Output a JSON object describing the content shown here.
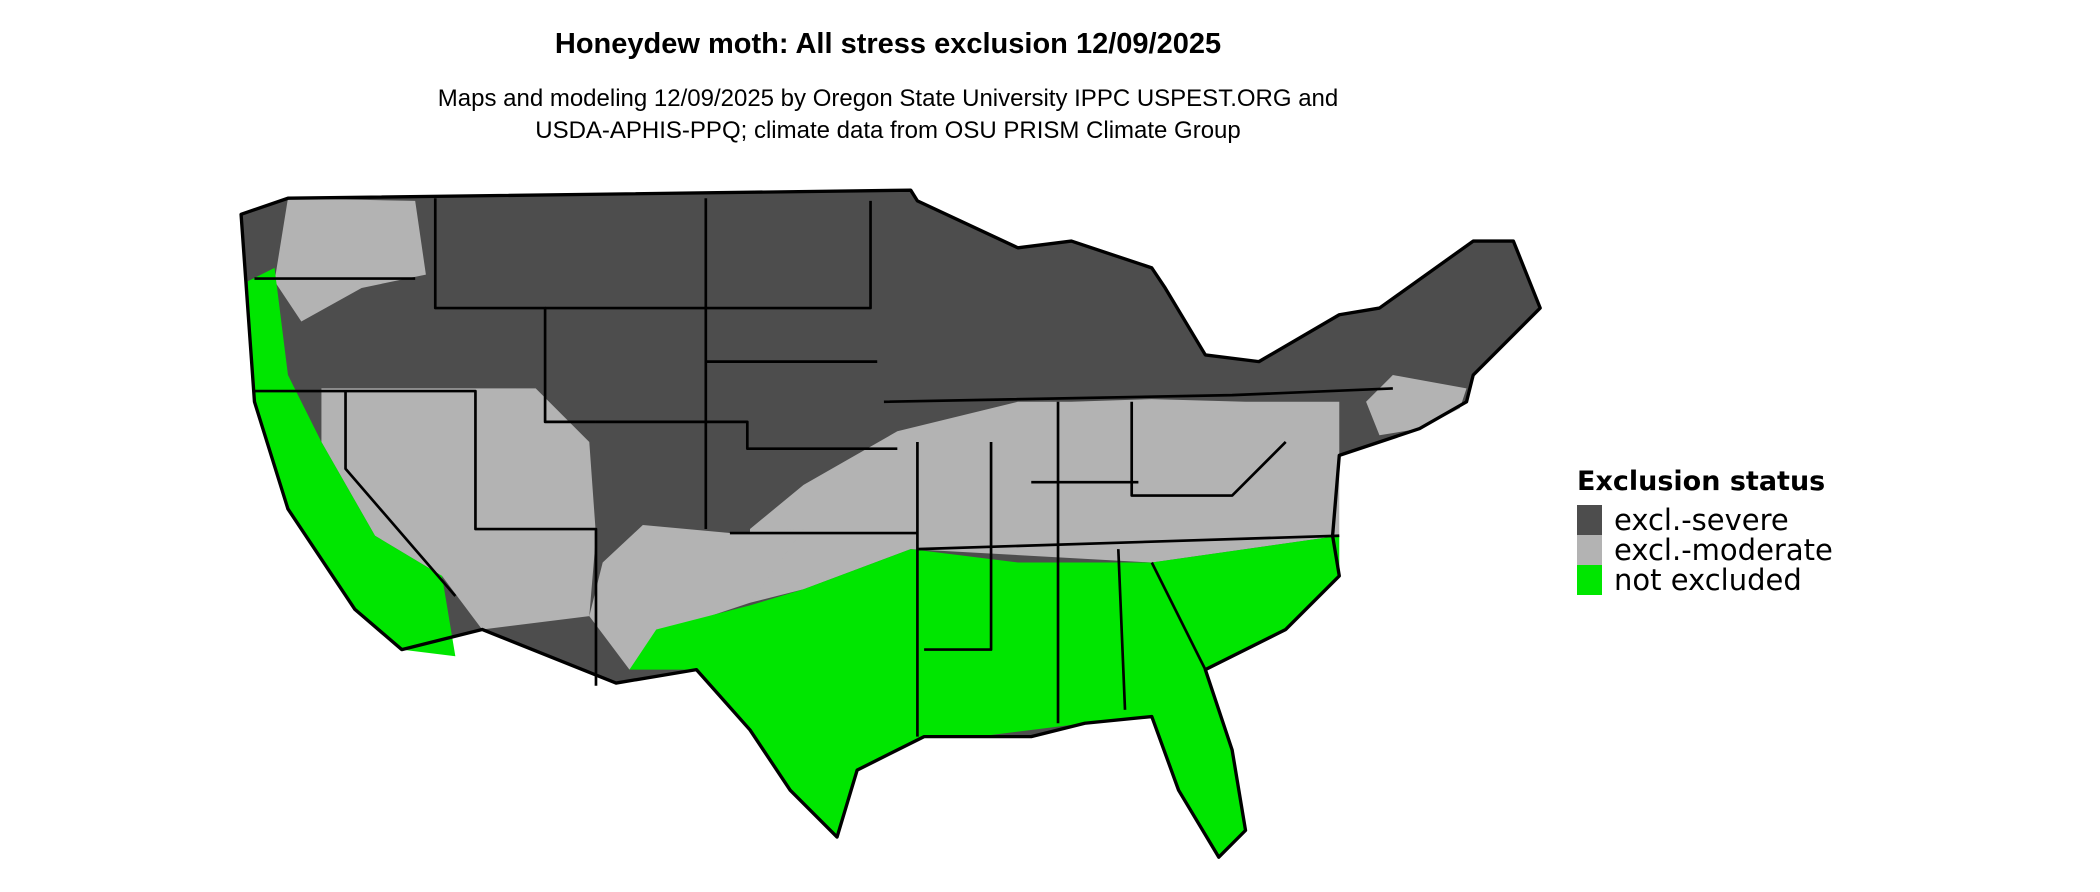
{
  "title": "Honeydew moth: All stress exclusion 12/09/2025",
  "subtitle_lines": [
    "Maps and modeling 12/09/2025 by Oregon State University IPPC USPEST.ORG and",
    "USDA-APHIS-PPQ; climate data from OSU PRISM Climate Group"
  ],
  "legend": {
    "title": "Exclusion status",
    "items": [
      {
        "label": "excl.-severe",
        "color": "#4d4d4d"
      },
      {
        "label": "excl.-moderate",
        "color": "#b3b3b3"
      },
      {
        "label": "not excluded",
        "color": "#00e600"
      }
    ]
  }
}
